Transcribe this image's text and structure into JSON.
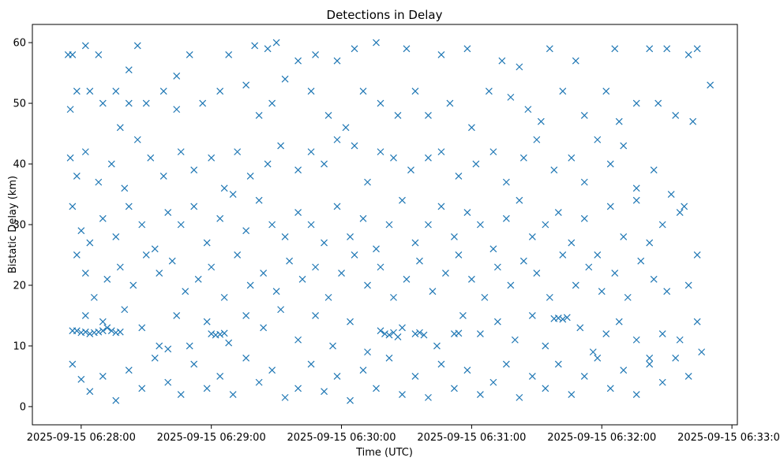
{
  "chart_data": {
    "type": "scatter",
    "title": "Detections in Delay",
    "xlabel": "Time (UTC)",
    "ylabel": "Bistatic Delay (km)",
    "marker": "x",
    "color": "#1f77b4",
    "x_unit": "seconds after 2025-09-15 06:27:00",
    "xlim": [
      37.5,
      362.5
    ],
    "ylim": [
      -3,
      63
    ],
    "x_ticks": [
      {
        "value": 60,
        "label": "2025-09-15 06:28:00"
      },
      {
        "value": 120,
        "label": "2025-09-15 06:29:00"
      },
      {
        "value": 180,
        "label": "2025-09-15 06:30:00"
      },
      {
        "value": 240,
        "label": "2025-09-15 06:31:00"
      },
      {
        "value": 300,
        "label": "2025-09-15 06:32:00"
      },
      {
        "value": 360,
        "label": "2025-09-15 06:33:00"
      }
    ],
    "y_ticks": [
      {
        "value": 0,
        "label": "0"
      },
      {
        "value": 10,
        "label": "10"
      },
      {
        "value": 20,
        "label": "20"
      },
      {
        "value": 30,
        "label": "30"
      },
      {
        "value": 40,
        "label": "40"
      },
      {
        "value": 50,
        "label": "50"
      },
      {
        "value": 60,
        "label": "60"
      }
    ],
    "points": [
      [
        54,
        58
      ],
      [
        56,
        58
      ],
      [
        62,
        59.5
      ],
      [
        68,
        58
      ],
      [
        82,
        55.5
      ],
      [
        86,
        59.5
      ],
      [
        104,
        54.5
      ],
      [
        110,
        58
      ],
      [
        128,
        58
      ],
      [
        140,
        59.5
      ],
      [
        146,
        59
      ],
      [
        150,
        60
      ],
      [
        160,
        57
      ],
      [
        168,
        58
      ],
      [
        178,
        57
      ],
      [
        186,
        59
      ],
      [
        196,
        60
      ],
      [
        210,
        59
      ],
      [
        226,
        58
      ],
      [
        238,
        59
      ],
      [
        254,
        57
      ],
      [
        262,
        56
      ],
      [
        276,
        59
      ],
      [
        288,
        57
      ],
      [
        306,
        59
      ],
      [
        322,
        59
      ],
      [
        330,
        59
      ],
      [
        340,
        58
      ],
      [
        344,
        59
      ],
      [
        55,
        49
      ],
      [
        58,
        52
      ],
      [
        64,
        52
      ],
      [
        70,
        50
      ],
      [
        76,
        52
      ],
      [
        78,
        46
      ],
      [
        82,
        50
      ],
      [
        90,
        50
      ],
      [
        98,
        52
      ],
      [
        104,
        49
      ],
      [
        116,
        50
      ],
      [
        124,
        52
      ],
      [
        136,
        53
      ],
      [
        142,
        48
      ],
      [
        148,
        50
      ],
      [
        154,
        54
      ],
      [
        166,
        52
      ],
      [
        174,
        48
      ],
      [
        182,
        46
      ],
      [
        190,
        52
      ],
      [
        198,
        50
      ],
      [
        206,
        48
      ],
      [
        214,
        52
      ],
      [
        220,
        48
      ],
      [
        230,
        50
      ],
      [
        240,
        46
      ],
      [
        248,
        52
      ],
      [
        258,
        51
      ],
      [
        266,
        49
      ],
      [
        272,
        47
      ],
      [
        282,
        52
      ],
      [
        292,
        48
      ],
      [
        302,
        52
      ],
      [
        308,
        47
      ],
      [
        316,
        50
      ],
      [
        326,
        50
      ],
      [
        334,
        48
      ],
      [
        342,
        47
      ],
      [
        350,
        53
      ],
      [
        55,
        41
      ],
      [
        58,
        38
      ],
      [
        62,
        42
      ],
      [
        68,
        37
      ],
      [
        74,
        40
      ],
      [
        80,
        36
      ],
      [
        86,
        44
      ],
      [
        92,
        41
      ],
      [
        98,
        38
      ],
      [
        106,
        42
      ],
      [
        112,
        39
      ],
      [
        120,
        41
      ],
      [
        126,
        36
      ],
      [
        132,
        42
      ],
      [
        138,
        38
      ],
      [
        146,
        40
      ],
      [
        152,
        43
      ],
      [
        160,
        39
      ],
      [
        166,
        42
      ],
      [
        172,
        40
      ],
      [
        178,
        44
      ],
      [
        186,
        43
      ],
      [
        192,
        37
      ],
      [
        198,
        42
      ],
      [
        204,
        41
      ],
      [
        212,
        39
      ],
      [
        220,
        41
      ],
      [
        226,
        42
      ],
      [
        234,
        38
      ],
      [
        242,
        40
      ],
      [
        250,
        42
      ],
      [
        256,
        37
      ],
      [
        264,
        41
      ],
      [
        270,
        44
      ],
      [
        278,
        39
      ],
      [
        286,
        41
      ],
      [
        292,
        37
      ],
      [
        298,
        44
      ],
      [
        304,
        40
      ],
      [
        310,
        43
      ],
      [
        316,
        36
      ],
      [
        324,
        39
      ],
      [
        332,
        35
      ],
      [
        338,
        33
      ],
      [
        56,
        33
      ],
      [
        60,
        29
      ],
      [
        64,
        27
      ],
      [
        70,
        31
      ],
      [
        76,
        28
      ],
      [
        82,
        33
      ],
      [
        88,
        30
      ],
      [
        94,
        26
      ],
      [
        100,
        32
      ],
      [
        106,
        30
      ],
      [
        112,
        33
      ],
      [
        118,
        27
      ],
      [
        124,
        31
      ],
      [
        130,
        35
      ],
      [
        136,
        29
      ],
      [
        142,
        34
      ],
      [
        148,
        30
      ],
      [
        154,
        28
      ],
      [
        160,
        32
      ],
      [
        166,
        30
      ],
      [
        172,
        27
      ],
      [
        178,
        33
      ],
      [
        184,
        28
      ],
      [
        190,
        31
      ],
      [
        196,
        26
      ],
      [
        202,
        30
      ],
      [
        208,
        34
      ],
      [
        214,
        27
      ],
      [
        220,
        30
      ],
      [
        226,
        33
      ],
      [
        232,
        28
      ],
      [
        238,
        32
      ],
      [
        244,
        30
      ],
      [
        250,
        26
      ],
      [
        256,
        31
      ],
      [
        262,
        34
      ],
      [
        268,
        28
      ],
      [
        274,
        30
      ],
      [
        280,
        32
      ],
      [
        286,
        27
      ],
      [
        292,
        31
      ],
      [
        298,
        25
      ],
      [
        304,
        33
      ],
      [
        310,
        28
      ],
      [
        316,
        34
      ],
      [
        322,
        27
      ],
      [
        328,
        30
      ],
      [
        336,
        32
      ],
      [
        344,
        25
      ],
      [
        58,
        25
      ],
      [
        62,
        22
      ],
      [
        66,
        18
      ],
      [
        72,
        21
      ],
      [
        78,
        23
      ],
      [
        84,
        20
      ],
      [
        90,
        25
      ],
      [
        96,
        22
      ],
      [
        102,
        24
      ],
      [
        108,
        19
      ],
      [
        114,
        21
      ],
      [
        120,
        23
      ],
      [
        126,
        18
      ],
      [
        132,
        25
      ],
      [
        138,
        20
      ],
      [
        144,
        22
      ],
      [
        150,
        19
      ],
      [
        156,
        24
      ],
      [
        162,
        21
      ],
      [
        168,
        23
      ],
      [
        174,
        18
      ],
      [
        180,
        22
      ],
      [
        186,
        25
      ],
      [
        192,
        20
      ],
      [
        198,
        23
      ],
      [
        204,
        18
      ],
      [
        210,
        21
      ],
      [
        216,
        24
      ],
      [
        222,
        19
      ],
      [
        228,
        22
      ],
      [
        234,
        25
      ],
      [
        240,
        21
      ],
      [
        246,
        18
      ],
      [
        252,
        23
      ],
      [
        258,
        20
      ],
      [
        264,
        24
      ],
      [
        270,
        22
      ],
      [
        276,
        18
      ],
      [
        282,
        25
      ],
      [
        288,
        20
      ],
      [
        294,
        23
      ],
      [
        300,
        19
      ],
      [
        306,
        22
      ],
      [
        312,
        18
      ],
      [
        318,
        24
      ],
      [
        324,
        21
      ],
      [
        330,
        19
      ],
      [
        340,
        20
      ],
      [
        56,
        12.5
      ],
      [
        58,
        12.5
      ],
      [
        60,
        12.2
      ],
      [
        62,
        12.3
      ],
      [
        64,
        12
      ],
      [
        66,
        12.2
      ],
      [
        68,
        12.3
      ],
      [
        70,
        12.5
      ],
      [
        72,
        13
      ],
      [
        74,
        12.5
      ],
      [
        76,
        12.2
      ],
      [
        78,
        12.3
      ],
      [
        120,
        12
      ],
      [
        122,
        11.8
      ],
      [
        124,
        11.9
      ],
      [
        126,
        12.1
      ],
      [
        198,
        12.5
      ],
      [
        200,
        12
      ],
      [
        202,
        11.8
      ],
      [
        204,
        12.2
      ],
      [
        206,
        11.5
      ],
      [
        214,
        12
      ],
      [
        216,
        12.2
      ],
      [
        218,
        11.8
      ],
      [
        232,
        12
      ],
      [
        234,
        12.1
      ],
      [
        278,
        14.5
      ],
      [
        280,
        14.6
      ],
      [
        282,
        14.4
      ],
      [
        284,
        14.7
      ],
      [
        62,
        15
      ],
      [
        70,
        14
      ],
      [
        80,
        16
      ],
      [
        88,
        13
      ],
      [
        96,
        10
      ],
      [
        100,
        9.5
      ],
      [
        104,
        15
      ],
      [
        110,
        10
      ],
      [
        118,
        14
      ],
      [
        128,
        10.5
      ],
      [
        136,
        15
      ],
      [
        144,
        13
      ],
      [
        152,
        16
      ],
      [
        160,
        11
      ],
      [
        168,
        15
      ],
      [
        176,
        10
      ],
      [
        184,
        14
      ],
      [
        192,
        9
      ],
      [
        208,
        13
      ],
      [
        224,
        10
      ],
      [
        236,
        15
      ],
      [
        244,
        12
      ],
      [
        252,
        14
      ],
      [
        260,
        11
      ],
      [
        268,
        15
      ],
      [
        274,
        10
      ],
      [
        290,
        13
      ],
      [
        296,
        9
      ],
      [
        302,
        12
      ],
      [
        308,
        14
      ],
      [
        316,
        11
      ],
      [
        322,
        8
      ],
      [
        328,
        12
      ],
      [
        336,
        11
      ],
      [
        344,
        14
      ],
      [
        56,
        7
      ],
      [
        60,
        4.5
      ],
      [
        64,
        2.5
      ],
      [
        70,
        5
      ],
      [
        76,
        1
      ],
      [
        82,
        6
      ],
      [
        88,
        3
      ],
      [
        94,
        8
      ],
      [
        100,
        4
      ],
      [
        106,
        2
      ],
      [
        112,
        7
      ],
      [
        118,
        3
      ],
      [
        124,
        5
      ],
      [
        130,
        2
      ],
      [
        136,
        8
      ],
      [
        142,
        4
      ],
      [
        148,
        6
      ],
      [
        154,
        1.5
      ],
      [
        160,
        3
      ],
      [
        166,
        7
      ],
      [
        172,
        2.5
      ],
      [
        178,
        5
      ],
      [
        184,
        1
      ],
      [
        190,
        6
      ],
      [
        196,
        3
      ],
      [
        202,
        8
      ],
      [
        208,
        2
      ],
      [
        214,
        5
      ],
      [
        220,
        1.5
      ],
      [
        226,
        7
      ],
      [
        232,
        3
      ],
      [
        238,
        6
      ],
      [
        244,
        2
      ],
      [
        250,
        4
      ],
      [
        256,
        7
      ],
      [
        262,
        1.5
      ],
      [
        268,
        5
      ],
      [
        274,
        3
      ],
      [
        280,
        7
      ],
      [
        286,
        2
      ],
      [
        292,
        5
      ],
      [
        298,
        8
      ],
      [
        304,
        3
      ],
      [
        310,
        6
      ],
      [
        316,
        2
      ],
      [
        322,
        7
      ],
      [
        328,
        4
      ],
      [
        334,
        8
      ],
      [
        340,
        5
      ],
      [
        346,
        9
      ]
    ]
  }
}
